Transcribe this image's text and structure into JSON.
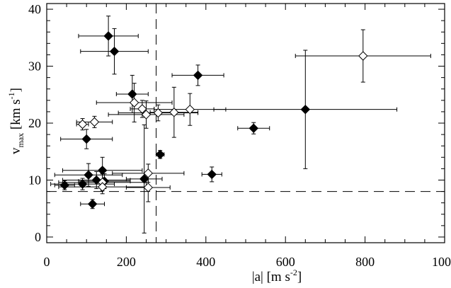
{
  "chart_data": {
    "type": "scatter",
    "title": "",
    "xlabel": "|a|  [m s-2]",
    "ylabel": "vmax [km s-1]",
    "xlim": [
      0,
      1000
    ],
    "ylim": [
      -1,
      41
    ],
    "xticks": [
      "0",
      "200",
      "400",
      "600",
      "800",
      "1000"
    ],
    "yticks": [
      "0",
      "10",
      "20",
      "30",
      "40"
    ],
    "hline": 8,
    "vline": 275,
    "series": [
      {
        "marker": "filled-diamond",
        "points": [
          {
            "x": 155,
            "y": 35.3,
            "xerr": 75,
            "yerr": 3.5
          },
          {
            "x": 170,
            "y": 32.6,
            "xerr": 85,
            "yerr": 4.0
          },
          {
            "x": 380,
            "y": 28.4,
            "xerr": 65,
            "yerr": 1.8
          },
          {
            "x": 215,
            "y": 25.1,
            "xerr": 40,
            "yerr": 3.3
          },
          {
            "x": 650,
            "y": 22.4,
            "xerr": 230,
            "yerr": 10.4
          },
          {
            "x": 520,
            "y": 19.1,
            "xerr": 40,
            "yerr": 1.0
          },
          {
            "x": 100,
            "y": 17.2,
            "xerr": 65,
            "yerr": 1.7
          },
          {
            "x": 285,
            "y": 14.5,
            "xerr": 10,
            "yerr": 0.7
          },
          {
            "x": 140,
            "y": 11.7,
            "xerr": 100,
            "yerr": 2.3
          },
          {
            "x": 105,
            "y": 10.9,
            "xerr": 85,
            "yerr": 2.0
          },
          {
            "x": 415,
            "y": 11.0,
            "xerr": 25,
            "yerr": 1.3
          },
          {
            "x": 245,
            "y": 10.2,
            "xerr": 45,
            "yerr": 9.5
          },
          {
            "x": 125,
            "y": 10.0,
            "xerr": 85,
            "yerr": 1.5
          },
          {
            "x": 145,
            "y": 9.8,
            "xerr": 65,
            "yerr": 1.3
          },
          {
            "x": 90,
            "y": 9.3,
            "xerr": 80,
            "yerr": 1.0
          },
          {
            "x": 45,
            "y": 9.1,
            "xerr": 25,
            "yerr": 0.8
          },
          {
            "x": 115,
            "y": 5.8,
            "xerr": 30,
            "yerr": 0.8
          }
        ]
      },
      {
        "marker": "open-diamond",
        "points": [
          {
            "x": 795,
            "y": 31.8,
            "xerr": 170,
            "yerr": 4.6
          },
          {
            "x": 220,
            "y": 23.6,
            "xerr": 95,
            "yerr": 3.4
          },
          {
            "x": 240,
            "y": 22.5,
            "xerr": 30,
            "yerr": 1.5
          },
          {
            "x": 360,
            "y": 22.4,
            "xerr": 90,
            "yerr": 2.8
          },
          {
            "x": 320,
            "y": 21.9,
            "xerr": 60,
            "yerr": 4.4
          },
          {
            "x": 280,
            "y": 21.8,
            "xerr": 100,
            "yerr": 1.4
          },
          {
            "x": 250,
            "y": 21.5,
            "xerr": 95,
            "yerr": 2.4
          },
          {
            "x": 120,
            "y": 20.2,
            "xerr": 45,
            "yerr": 1.0
          },
          {
            "x": 90,
            "y": 19.8,
            "xerr": 15,
            "yerr": 1.0
          },
          {
            "x": 255,
            "y": 11.2,
            "xerr": 90,
            "yerr": 1.6
          },
          {
            "x": 140,
            "y": 9.6,
            "xerr": 110,
            "yerr": 1.5
          },
          {
            "x": 140,
            "y": 8.8,
            "xerr": 110,
            "yerr": 1.2
          },
          {
            "x": 255,
            "y": 8.7,
            "xerr": 55,
            "yerr": 2.5
          }
        ]
      }
    ]
  }
}
